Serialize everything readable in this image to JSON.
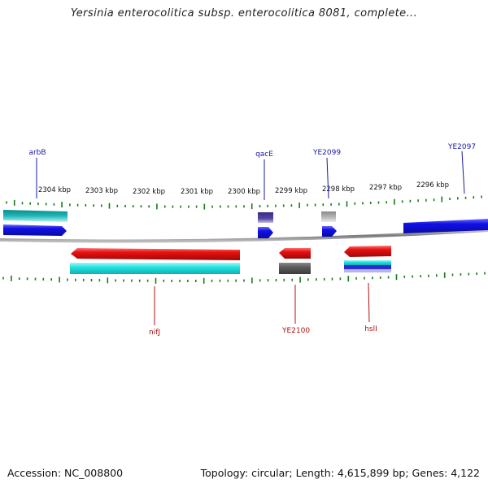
{
  "header": {
    "title": "Yersinia enterocolitica subsp. enterocolitica 8081, complete..."
  },
  "footer": {
    "accession": "Accession: NC_008800",
    "summary": "Topology: circular; Length: 4,615,899 bp; Genes: 4,122"
  },
  "ticks": [
    "2304 kbp",
    "2303 kbp",
    "2302 kbp",
    "2301 kbp",
    "2300 kbp",
    "2299 kbp",
    "2298 kbp",
    "2297 kbp",
    "2296 kbp"
  ],
  "features": {
    "forward_labels": [
      "arbB",
      "qacE",
      "YE2099",
      "YE2097"
    ],
    "reverse_labels": [
      "nifJ",
      "YE2100",
      "hslI"
    ]
  },
  "colors": {
    "forward_label": "#1a1aa6",
    "reverse_label": "#b01010",
    "tick": "#1a7a1a",
    "backbone": "#8a8a8a",
    "gene_forward": "#1010e0",
    "gene_reverse": "#e61010",
    "cog_teal": "#20b8b8",
    "cog_cyan": "#20e0e0",
    "cog_purple": "#4a3a9a",
    "cog_gray": "#9a9a9a"
  }
}
